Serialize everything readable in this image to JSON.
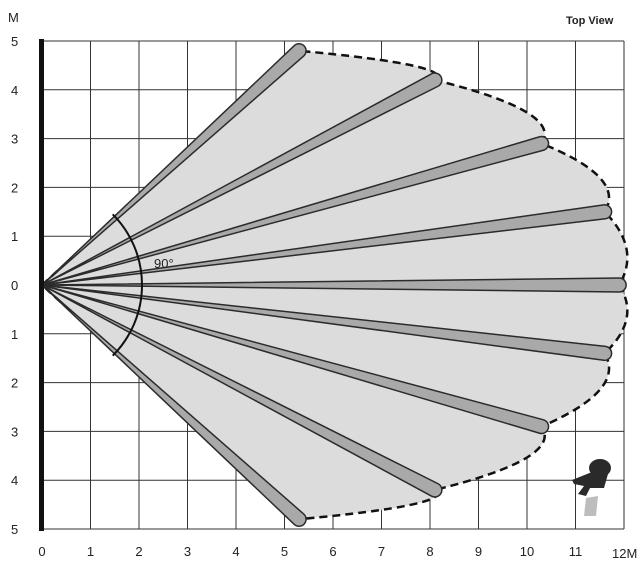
{
  "diagram": {
    "title": "Top View",
    "y_unit": "M",
    "x_unit_label": "12M",
    "angle_label": "90°",
    "x_ticks": [
      "0",
      "1",
      "2",
      "3",
      "4",
      "5",
      "6",
      "7",
      "8",
      "9",
      "10",
      "11"
    ],
    "y_ticks": [
      "5",
      "4",
      "3",
      "2",
      "1",
      "0",
      "1",
      "2",
      "3",
      "4",
      "5"
    ],
    "colors": {
      "grid": "#333333",
      "coverage_fill": "#dcdcdc",
      "beam_fill": "#a9a9a9",
      "beam_stroke": "#2b2b2b",
      "person": "#2a2a2a",
      "person_legs": "#bdbdbd"
    },
    "icon": "person-icon"
  },
  "chart_data": {
    "type": "coverage-diagram",
    "title": "Top View",
    "units": "M",
    "x_range": [
      0,
      12
    ],
    "y_range": [
      -5,
      5
    ],
    "detection_angle_deg": 90,
    "beam_endpoints": [
      [
        5.3,
        4.8
      ],
      [
        8.1,
        4.2
      ],
      [
        10.3,
        2.9
      ],
      [
        11.6,
        1.5
      ],
      [
        11.9,
        0
      ],
      [
        11.6,
        -1.4
      ],
      [
        10.3,
        -2.9
      ],
      [
        8.1,
        -4.2
      ],
      [
        5.3,
        -4.8
      ]
    ]
  }
}
